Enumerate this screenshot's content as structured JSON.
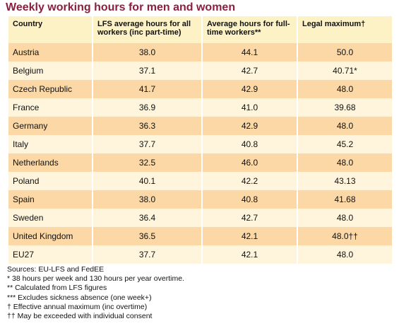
{
  "title": "Weekly working hours for men and women",
  "table": {
    "headers": [
      "Country",
      "LFS average hours for all workers (inc part-time)",
      "Average hours for full-time workers**",
      "Legal maximum†"
    ],
    "rows": [
      [
        "Austria",
        "38.0",
        "44.1",
        "50.0"
      ],
      [
        "Belgium",
        "37.1",
        "42.7",
        "40.71*"
      ],
      [
        "Czech Republic",
        "41.7",
        "42.9",
        "48.0"
      ],
      [
        "France",
        "36.9",
        "41.0",
        "39.68"
      ],
      [
        "Germany",
        "36.3",
        "42.9",
        "48.0"
      ],
      [
        "Italy",
        "37.7",
        "40.8",
        "45.2"
      ],
      [
        "Netherlands",
        "32.5",
        "46.0",
        "48.0"
      ],
      [
        "Poland",
        "40.1",
        "42.2",
        "43.13"
      ],
      [
        "Spain",
        "38.0",
        "40.8",
        "41.68"
      ],
      [
        "Sweden",
        "36.4",
        "42.7",
        "48.0"
      ],
      [
        "United Kingdom",
        "36.5",
        "42.1",
        "48.0††"
      ],
      [
        "EU27",
        "37.7",
        "42.1",
        "48.0"
      ]
    ]
  },
  "footnotes": [
    "Sources: EU-LFS and FedEE",
    "* 38 hours per week and 130 hours per year overtime.",
    "** Calculated from LFS figures",
    "*** Excludes sickness absence (one week+)",
    "† Effective annual maximum (inc overtime)",
    "†† May be exceeded with individual consent"
  ]
}
